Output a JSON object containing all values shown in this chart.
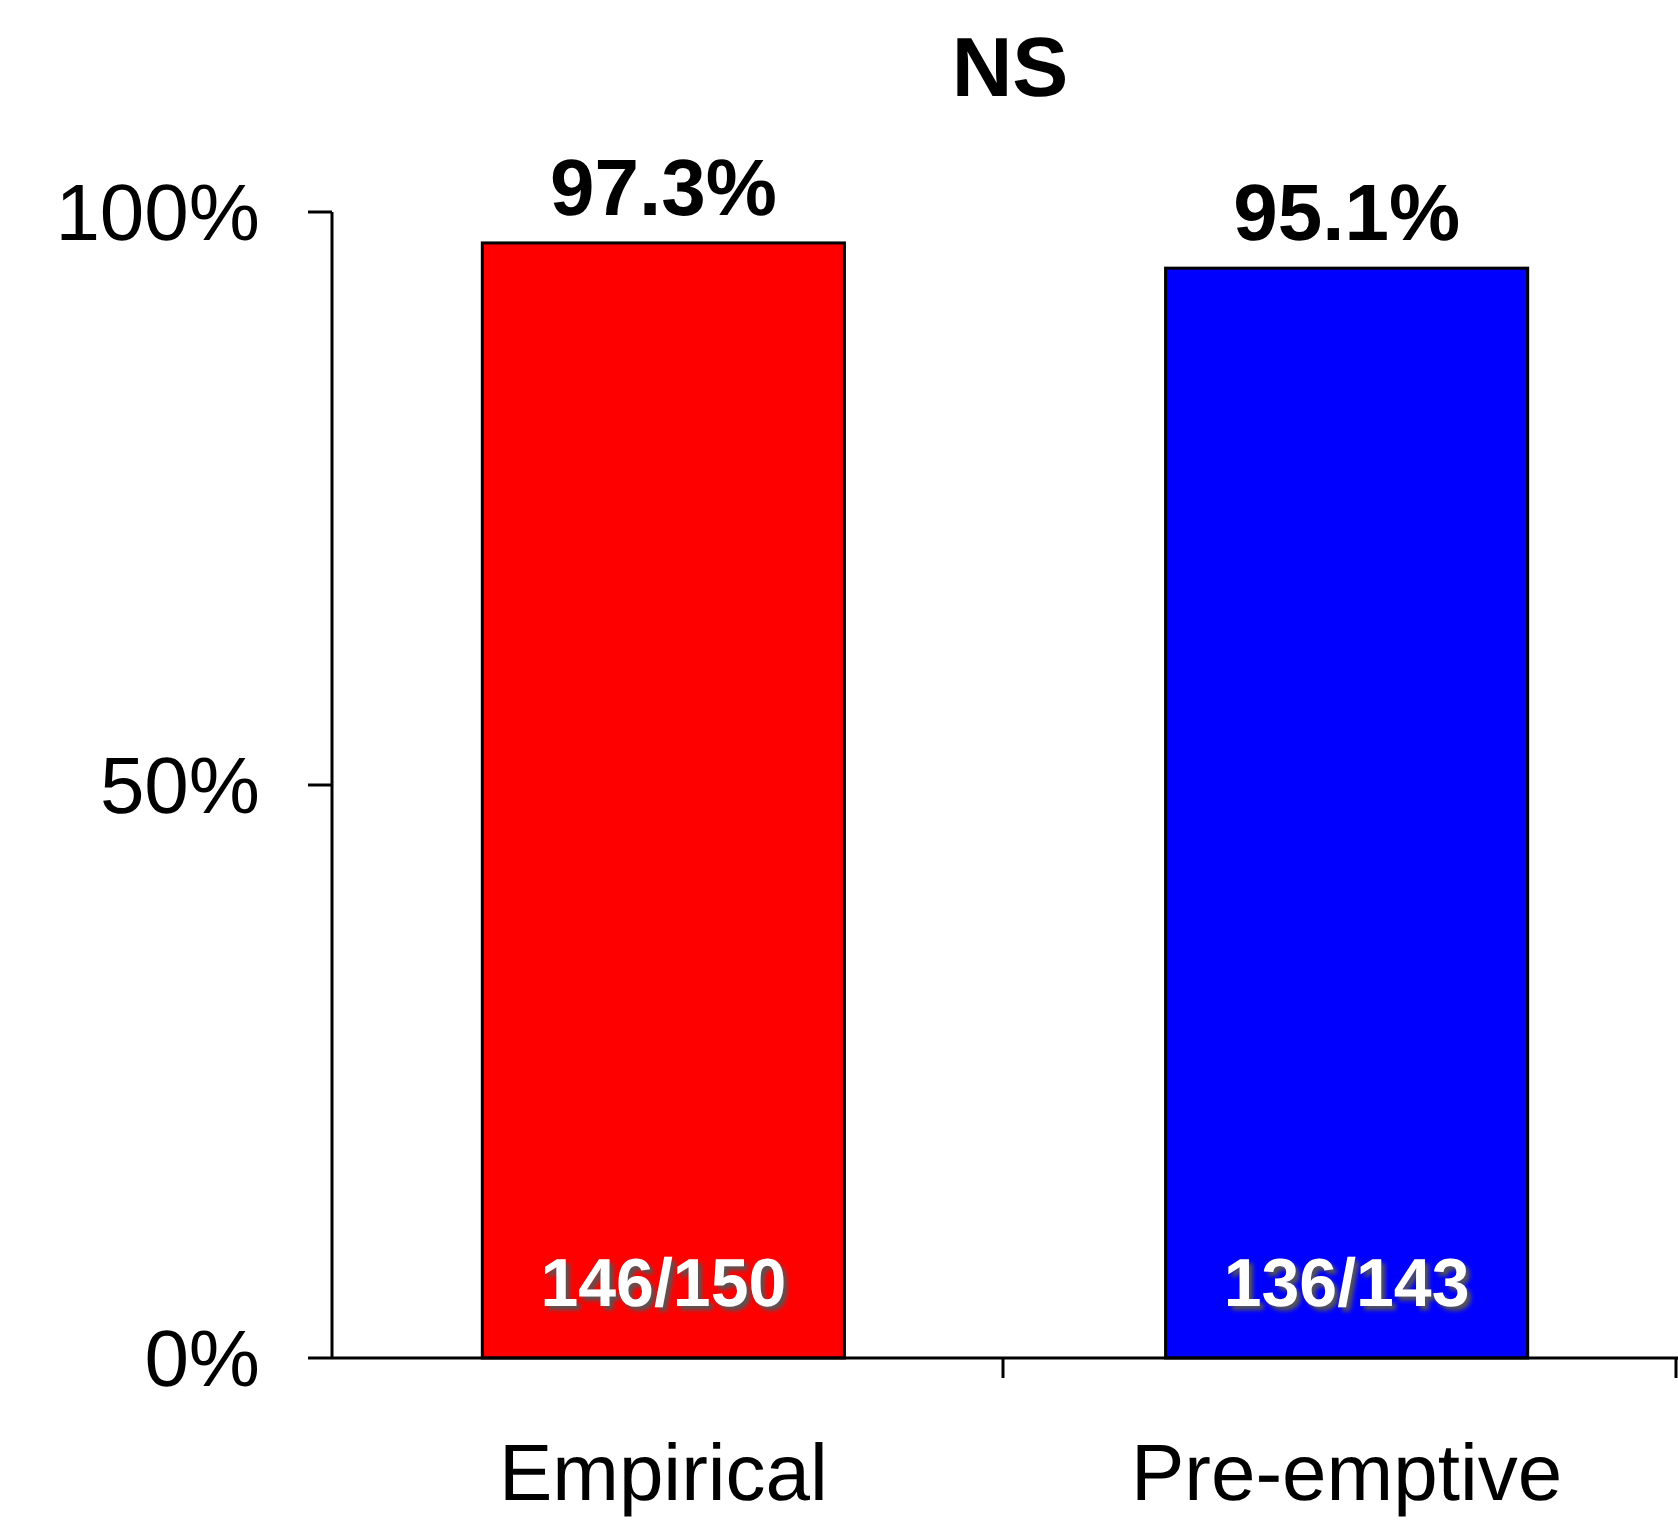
{
  "chart_data": {
    "type": "bar",
    "title": "NS",
    "categories": [
      "Empirical",
      "Pre-emptive"
    ],
    "values": [
      97.3,
      95.1
    ],
    "colors": [
      "#ff0000",
      "#0000ff"
    ],
    "value_labels": [
      "97.3%",
      "95.1%"
    ],
    "annotations": [
      "146/150",
      "136/143"
    ],
    "ylim": [
      0,
      100
    ],
    "yticks": [
      {
        "value": 0,
        "label": "0%"
      },
      {
        "value": 50,
        "label": "50%"
      },
      {
        "value": 100,
        "label": "100%"
      }
    ],
    "grid": false
  }
}
